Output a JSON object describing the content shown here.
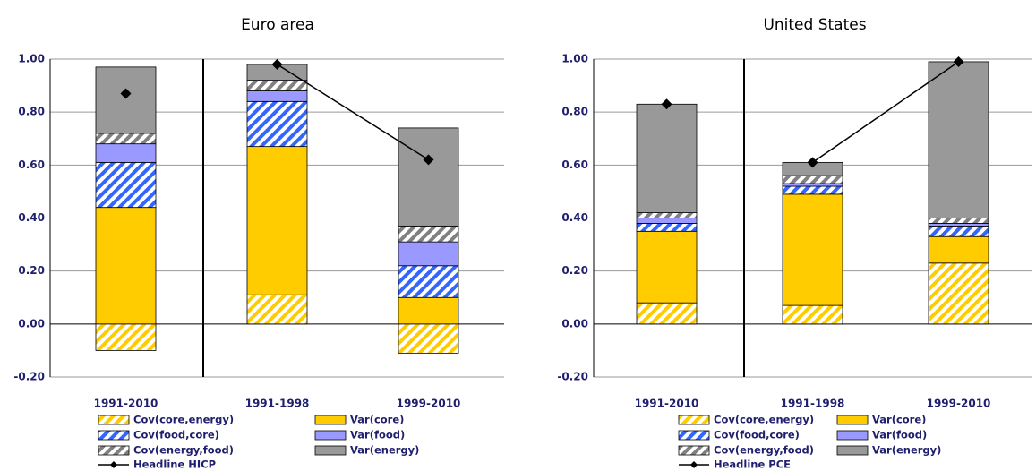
{
  "chart_data": [
    {
      "type": "bar",
      "stacked": true,
      "title": "Euro area",
      "categories": [
        "1991-2010",
        "1991-1998",
        "1999-2010"
      ],
      "ylim": [
        -0.2,
        1.0
      ],
      "yticks": [
        {
          "value": -0.2,
          "label": "-0.20"
        },
        {
          "value": 0,
          "label": "0.00"
        },
        {
          "value": 0.2,
          "label": "0.20"
        },
        {
          "value": 0.4,
          "label": "0.40"
        },
        {
          "value": 0.6,
          "label": "0.60"
        },
        {
          "value": 0.8,
          "label": "0.80"
        },
        {
          "value": 1.0,
          "label": "1.00"
        }
      ],
      "grid": true,
      "series": [
        {
          "name": "Cov(core,energy)",
          "color": "#ffcc00",
          "hatch": true,
          "values": [
            -0.1,
            0.11,
            -0.11
          ]
        },
        {
          "name": "Var(core)",
          "color": "#ffcc00",
          "hatch": false,
          "values": [
            0.44,
            0.56,
            0.1
          ]
        },
        {
          "name": "Cov(food,core)",
          "color": "#3366ff",
          "hatch": true,
          "values": [
            0.17,
            0.17,
            0.12
          ]
        },
        {
          "name": "Var(food)",
          "color": "#9999ff",
          "hatch": false,
          "values": [
            0.07,
            0.04,
            0.09
          ]
        },
        {
          "name": "Cov(energy,food)",
          "color": "#808080",
          "hatch": true,
          "values": [
            0.04,
            0.04,
            0.06
          ]
        },
        {
          "name": "Var(energy)",
          "color": "#999999",
          "hatch": false,
          "values": [
            0.25,
            0.06,
            0.37
          ]
        },
        {
          "name": "Headline HICP",
          "type": "line",
          "color": "#000000",
          "values": [
            0.87,
            0.98,
            0.62
          ]
        }
      ]
    },
    {
      "type": "bar",
      "stacked": true,
      "title": "United States",
      "categories": [
        "1991-2010",
        "1991-1998",
        "1999-2010"
      ],
      "ylim": [
        -0.2,
        1.0
      ],
      "yticks": [
        {
          "value": -0.2,
          "label": "-0.20"
        },
        {
          "value": 0,
          "label": "0.00"
        },
        {
          "value": 0.2,
          "label": "0.20"
        },
        {
          "value": 0.4,
          "label": "0.40"
        },
        {
          "value": 0.6,
          "label": "0.60"
        },
        {
          "value": 0.8,
          "label": "0.80"
        },
        {
          "value": 1.0,
          "label": "1.00"
        }
      ],
      "grid": true,
      "series": [
        {
          "name": "Cov(core,energy)",
          "color": "#ffcc00",
          "hatch": true,
          "values": [
            0.08,
            0.07,
            0.23
          ]
        },
        {
          "name": "Var(core)",
          "color": "#ffcc00",
          "hatch": false,
          "values": [
            0.27,
            0.42,
            0.1
          ]
        },
        {
          "name": "Cov(food,core)",
          "color": "#3366ff",
          "hatch": true,
          "values": [
            0.03,
            0.03,
            0.04
          ]
        },
        {
          "name": "Var(food)",
          "color": "#9999ff",
          "hatch": false,
          "values": [
            0.02,
            0.01,
            0.01
          ]
        },
        {
          "name": "Cov(energy,food)",
          "color": "#808080",
          "hatch": true,
          "values": [
            0.02,
            0.03,
            0.02
          ]
        },
        {
          "name": "Var(energy)",
          "color": "#999999",
          "hatch": false,
          "values": [
            0.41,
            0.05,
            0.59
          ]
        },
        {
          "name": "Headline PCE",
          "type": "line",
          "color": "#000000",
          "values": [
            0.83,
            0.61,
            0.99
          ]
        }
      ]
    }
  ]
}
